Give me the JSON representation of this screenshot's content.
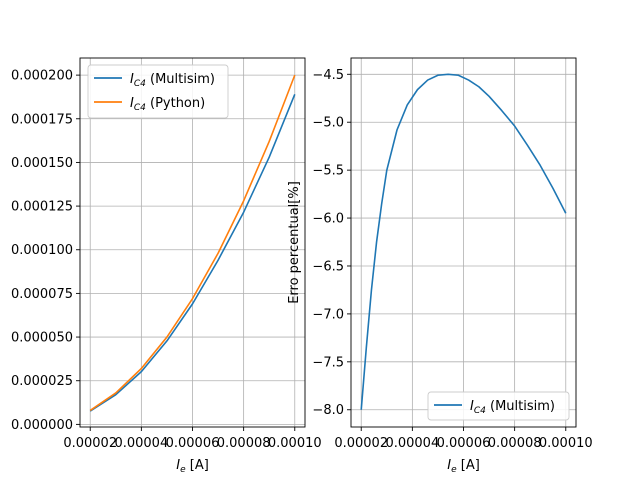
{
  "chart_data": [
    {
      "type": "line",
      "title": "",
      "xlabel_var": "I",
      "xlabel_sub": "e",
      "xlabel_unit": " [A]",
      "ylabel": "",
      "xlim": [
        1.6e-05,
        0.000104
      ],
      "ylim": [
        -1.5e-06,
        0.0002098
      ],
      "grid": true,
      "legend_placement": "top-left",
      "x_ticks": [
        2e-05,
        4e-05,
        6e-05,
        8e-05,
        0.0001
      ],
      "x_tick_labels": [
        "0.00002",
        "0.00004",
        "0.00006",
        "0.00008",
        "0.00010"
      ],
      "y_ticks": [
        0,
        2.5e-05,
        5e-05,
        7.5e-05,
        0.0001,
        0.000125,
        0.00015,
        0.000175,
        0.0002
      ],
      "y_tick_labels": [
        "0.000000",
        "0.000025",
        "0.000050",
        "0.000075",
        "0.000100",
        "0.000125",
        "0.000150",
        "0.000175",
        "0.000200"
      ],
      "series": [
        {
          "name_var": "I",
          "name_sub": "C4",
          "name_rest": " (Multisim)",
          "color": "#1f77b4",
          "x": [
            2e-05,
            3e-05,
            4e-05,
            5e-05,
            6e-05,
            7e-05,
            8e-05,
            9e-05,
            0.0001
          ],
          "y": [
            7.6e-06,
            1.7e-05,
            3.02e-05,
            4.78e-05,
            6.9e-05,
            9.4e-05,
            0.0001215,
            0.000153,
            0.000189
          ]
        },
        {
          "name_var": "I",
          "name_sub": "C4",
          "name_rest": " (Python)",
          "color": "#ff7f0e",
          "x": [
            2e-05,
            3e-05,
            4e-05,
            5e-05,
            6e-05,
            7e-05,
            8e-05,
            9e-05,
            0.0001
          ],
          "y": [
            8e-06,
            1.8e-05,
            3.2e-05,
            5e-05,
            7.2e-05,
            9.8e-05,
            0.000128,
            0.000162,
            0.0002
          ]
        }
      ]
    },
    {
      "type": "line",
      "title": "",
      "xlabel_var": "I",
      "xlabel_sub": "e",
      "xlabel_unit": " [A]",
      "ylabel": "Erro percentual[%]",
      "xlim": [
        1.6e-05,
        0.000104
      ],
      "ylim": [
        -8.18,
        -4.33
      ],
      "grid": true,
      "legend_placement": "bottom-right",
      "x_ticks": [
        2e-05,
        4e-05,
        6e-05,
        8e-05,
        0.0001
      ],
      "x_tick_labels": [
        "0.00002",
        "0.00004",
        "0.00006",
        "0.00008",
        "0.00010"
      ],
      "y_ticks": [
        -8.0,
        -7.5,
        -7.0,
        -6.5,
        -6.0,
        -5.5,
        -5.0,
        -4.5
      ],
      "y_tick_labels": [
        "−8.0",
        "−7.5",
        "−7.0",
        "−6.5",
        "−6.0",
        "−5.5",
        "−5.0",
        "−4.5"
      ],
      "series": [
        {
          "name_var": "I",
          "name_sub": "C4",
          "name_rest": " (Multisim)",
          "color": "#1f77b4",
          "x": [
            2e-05,
            2.2e-05,
            2.4e-05,
            2.6e-05,
            2.8e-05,
            3e-05,
            3.4e-05,
            3.8e-05,
            4.2e-05,
            4.6e-05,
            5e-05,
            5.4e-05,
            5.8e-05,
            6.2e-05,
            6.6e-05,
            7e-05,
            7.5e-05,
            8e-05,
            8.5e-05,
            9e-05,
            9.5e-05,
            0.0001
          ],
          "y": [
            -8.0,
            -7.35,
            -6.75,
            -6.25,
            -5.85,
            -5.5,
            -5.08,
            -4.82,
            -4.66,
            -4.56,
            -4.51,
            -4.5,
            -4.51,
            -4.56,
            -4.63,
            -4.73,
            -4.88,
            -5.04,
            -5.24,
            -5.45,
            -5.69,
            -5.95
          ]
        }
      ]
    }
  ]
}
